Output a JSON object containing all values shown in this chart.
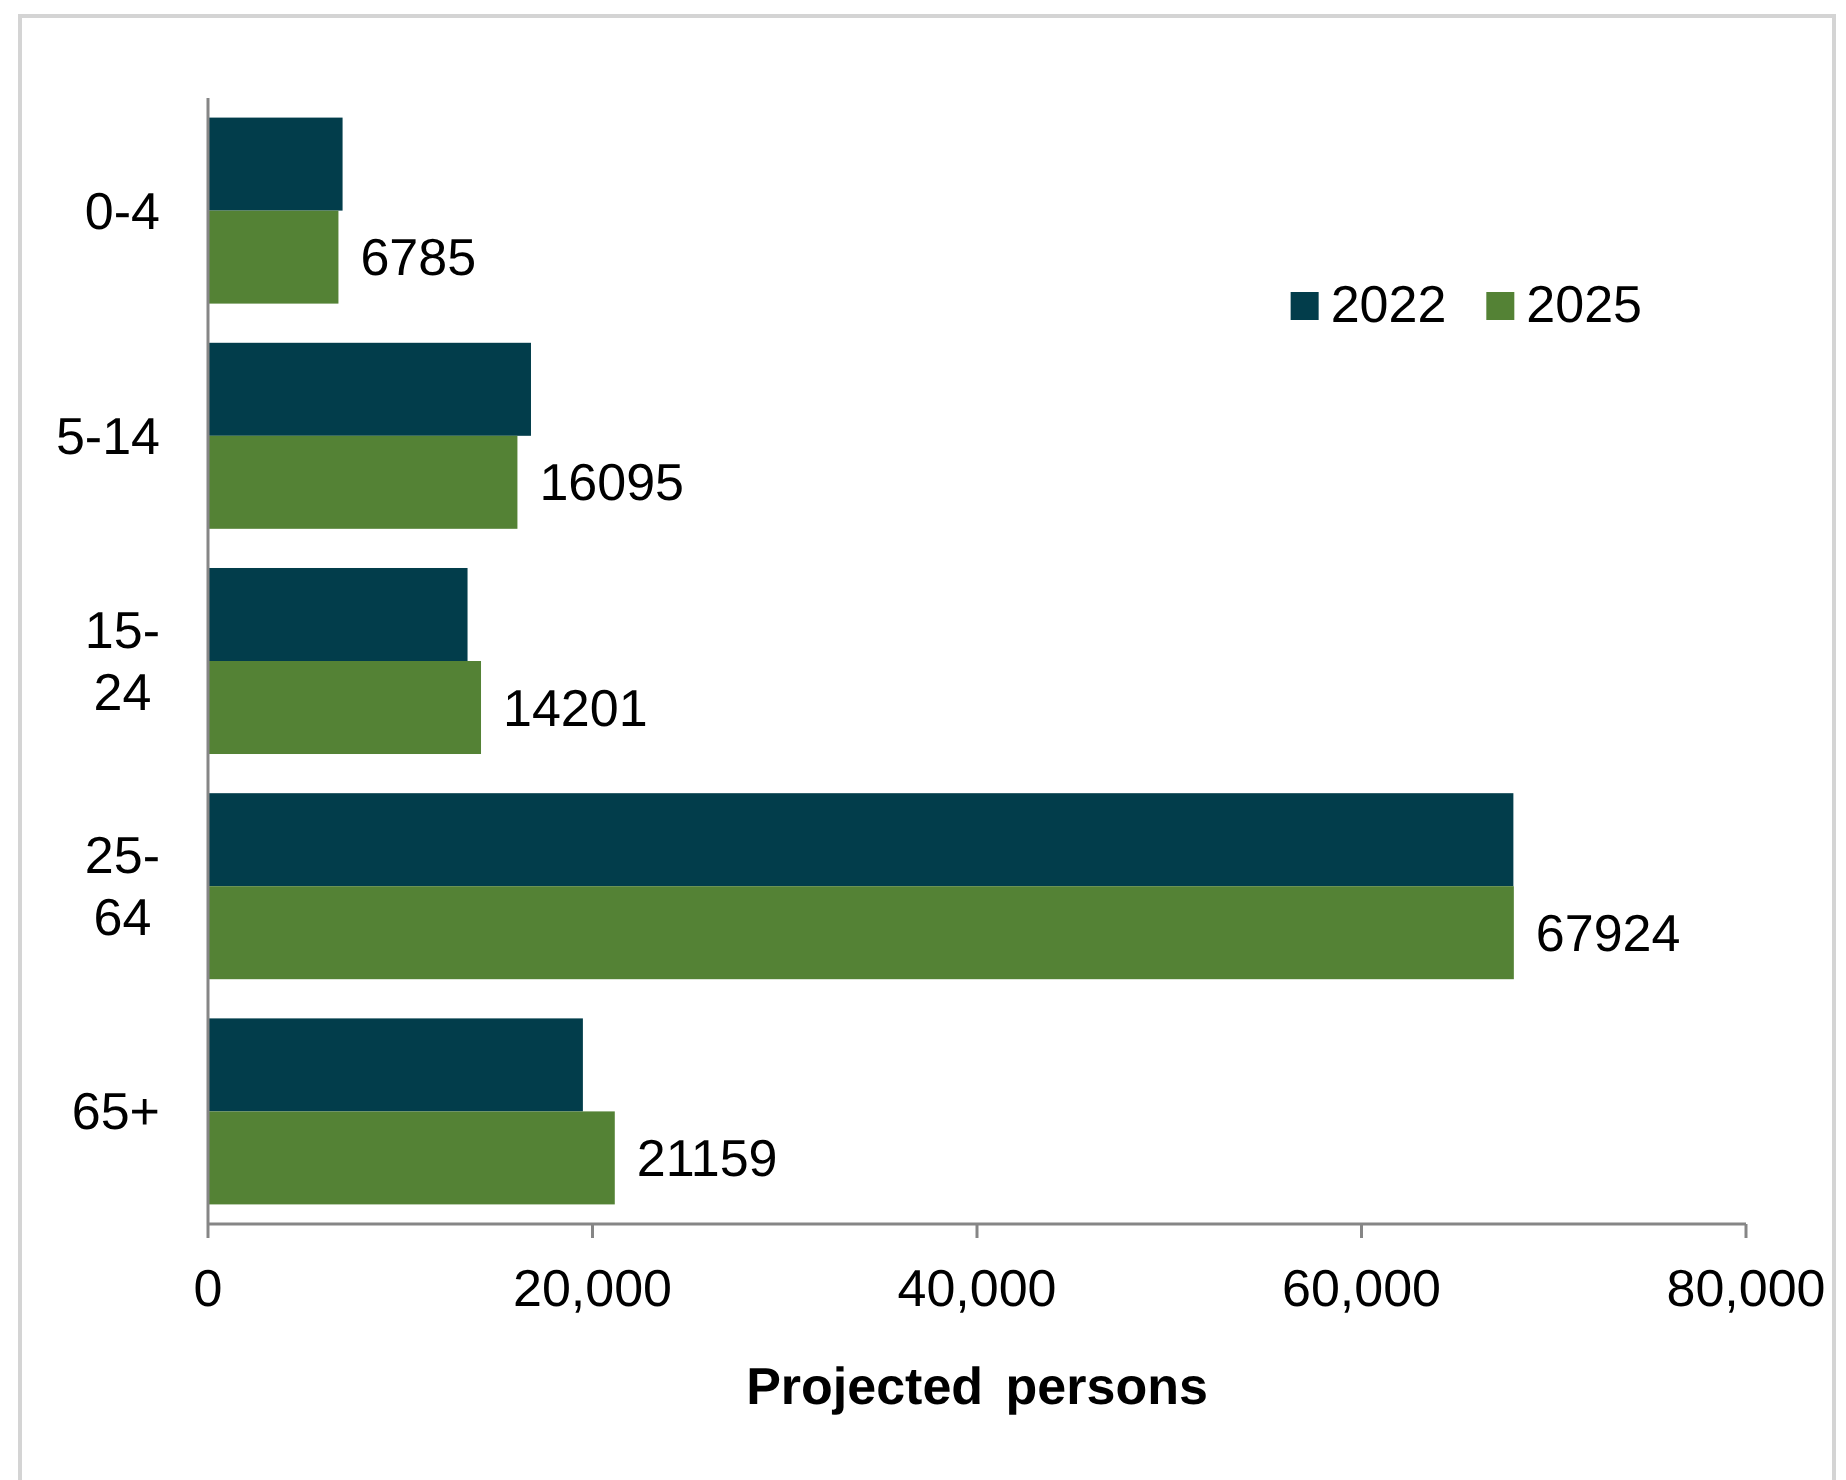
{
  "chart_data": {
    "type": "bar",
    "orientation": "horizontal",
    "categories": [
      "0-4",
      "5-14",
      "15-24",
      "25-64",
      "65+"
    ],
    "series": [
      {
        "name": "2022",
        "color": "#023d4b",
        "values": [
          7000,
          16800,
          13500,
          67900,
          19500
        ]
      },
      {
        "name": "2025",
        "color": "#548235",
        "values": [
          6785,
          16095,
          14201,
          67924,
          21159
        ],
        "value_labels": [
          "6785",
          "16095",
          "14201",
          "67924",
          "21159"
        ]
      }
    ],
    "xlabel": "Projected persons",
    "xlim": [
      0,
      80000
    ],
    "xticks": [
      0,
      {
        "value": 20000,
        "label": "20,000"
      },
      {
        "value": 40000,
        "label": "40,000"
      },
      {
        "value": 60000,
        "label": "60,000"
      },
      {
        "value": 80000,
        "label": "80,000"
      }
    ],
    "legend": "top right"
  }
}
